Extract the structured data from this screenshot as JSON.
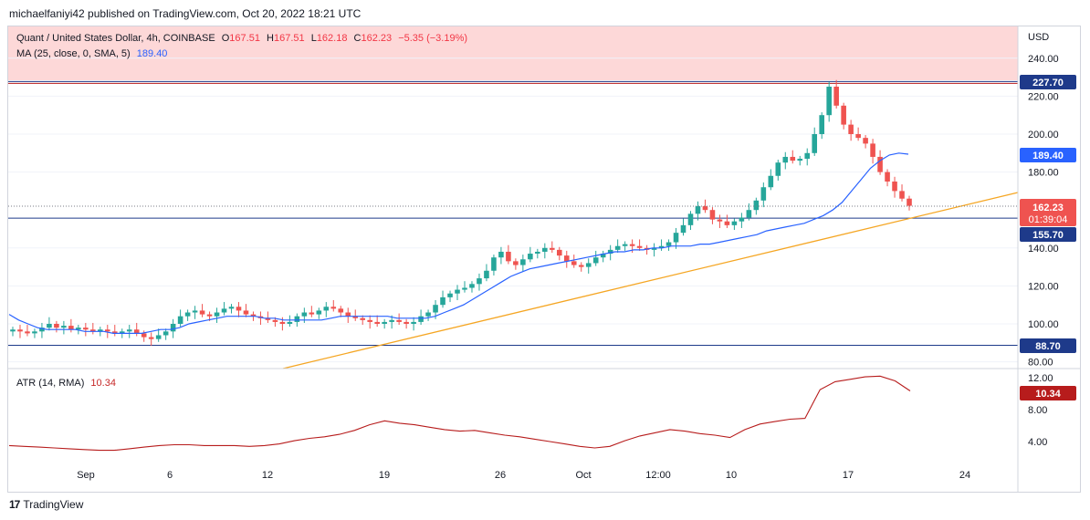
{
  "publisher": "michaelfaniyi42 published on TradingView.com, Oct 20, 2022 18:21 UTC",
  "legend": {
    "symbol": "Quant / United States Dollar, 4h, COINBASE",
    "o_label": "O",
    "o": "167.51",
    "h_label": "H",
    "h": "167.51",
    "l_label": "L",
    "l": "162.18",
    "c_label": "C",
    "c": "162.23",
    "change": "−5.35 (−3.19%)",
    "ma_label": "MA (25, close, 0, SMA, 5)",
    "ma_value": "189.40",
    "atr_label": "ATR (14, RMA)",
    "atr_value": "10.34"
  },
  "axis": {
    "currency": "USD",
    "price_ticks": [
      "240.00",
      "220.00",
      "200.00",
      "180.00",
      "140.00",
      "120.00",
      "100.00",
      "80.00"
    ],
    "atr_ticks": [
      "12.00",
      "8.00",
      "4.00"
    ],
    "time_ticks": [
      "Sep",
      "6",
      "12",
      "19",
      "26",
      "Oct",
      "12:00",
      "10",
      "17",
      "24"
    ]
  },
  "price_labels": {
    "resistance": "227.70",
    "ma": "189.40",
    "last": "162.23",
    "countdown": "01:39:04",
    "support_upper": "155.70",
    "support_lower": "88.70",
    "atr": "10.34"
  },
  "colors": {
    "up": "#26a69a",
    "down": "#ef5350",
    "ma": "#2962ff",
    "trendline": "#f5a623",
    "atr": "#b71c1c",
    "zone": "#fdd8d8"
  },
  "chart_data": {
    "type": "candlestick",
    "price_range": [
      76,
      250
    ],
    "levels": [
      227.7,
      155.7,
      88.7
    ],
    "resistance_zone": [
      227.7,
      265
    ],
    "trendline": [
      [
        0.25,
        76
      ],
      [
        0.96,
        168
      ]
    ],
    "series": [
      {
        "name": "Quant / United States Dollar, 4h, COINBASE",
        "values": [
          97,
          96,
          95,
          96,
          98,
          100,
          98,
          99,
          97,
          98,
          97,
          96,
          97,
          96,
          95,
          96,
          97,
          95,
          93,
          92,
          94,
          96,
          100,
          104,
          106,
          107,
          105,
          104,
          106,
          108,
          109,
          107,
          105,
          104,
          103,
          102,
          101,
          100,
          101,
          104,
          106,
          105,
          107,
          109,
          108,
          106,
          104,
          103,
          102,
          101,
          100,
          101,
          102,
          101,
          100,
          101,
          104,
          106,
          110,
          114,
          116,
          118,
          119,
          121,
          124,
          128,
          135,
          138,
          133,
          131,
          134,
          137,
          138,
          140,
          139,
          136,
          133,
          131,
          130,
          132,
          135,
          137,
          139,
          141,
          142,
          141,
          140,
          139,
          140,
          141,
          143,
          148,
          152,
          158,
          162,
          160,
          155,
          154,
          152,
          154,
          156,
          160,
          165,
          172,
          178,
          185,
          188,
          186,
          187,
          190,
          200,
          210,
          225,
          215,
          205,
          200,
          198,
          195,
          188,
          180,
          175,
          170,
          166,
          162.23
        ]
      },
      {
        "name": "MA (25, close, 0, SMA, 5)",
        "values": [
          105,
          102,
          100,
          98,
          97,
          97,
          97,
          97,
          96,
          96,
          96,
          95,
          95,
          95,
          95,
          96,
          97,
          97,
          98,
          100,
          101,
          102,
          103,
          104,
          104,
          104,
          104,
          103,
          103,
          102,
          102,
          102,
          102,
          102,
          103,
          104,
          104,
          104,
          104,
          104,
          104,
          103,
          103,
          103,
          103,
          104,
          106,
          108,
          110,
          113,
          116,
          119,
          122,
          125,
          127,
          129,
          130,
          131,
          132,
          133,
          134,
          135,
          136,
          137,
          138,
          138,
          139,
          139,
          140,
          140,
          141,
          141,
          141,
          142,
          142,
          143,
          144,
          145,
          146,
          147,
          149,
          150,
          151,
          152,
          153,
          155,
          157,
          160,
          164,
          170,
          176,
          182,
          186,
          189,
          190,
          189.4
        ]
      },
      {
        "name": "ATR (14, RMA)",
        "values": [
          3.5,
          3.4,
          3.3,
          3.2,
          3.1,
          3.0,
          2.9,
          2.9,
          3.1,
          3.3,
          3.5,
          3.6,
          3.6,
          3.5,
          3.5,
          3.5,
          3.4,
          3.5,
          3.7,
          4.1,
          4.4,
          4.6,
          4.9,
          5.4,
          6.1,
          6.6,
          6.3,
          6.1,
          5.8,
          5.5,
          5.3,
          5.4,
          5.1,
          4.8,
          4.6,
          4.3,
          4.0,
          3.7,
          3.4,
          3.2,
          3.4,
          4.1,
          4.7,
          5.1,
          5.5,
          5.3,
          5.0,
          4.8,
          4.5,
          5.5,
          6.2,
          6.5,
          6.8,
          6.9,
          10.5,
          11.5,
          11.8,
          12.1,
          12.2,
          11.6,
          10.34
        ]
      }
    ]
  }
}
